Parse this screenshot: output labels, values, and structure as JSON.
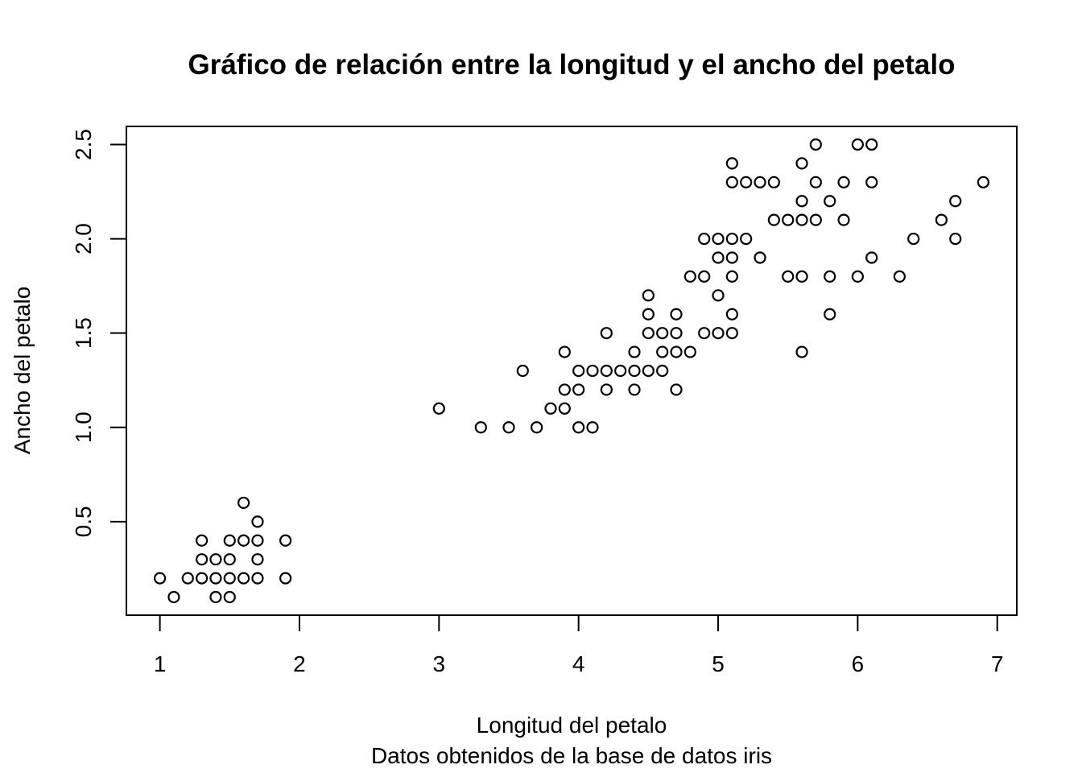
{
  "chart_data": {
    "type": "scatter",
    "title": "Gráfico de relación entre la longitud y el ancho del petalo",
    "xlabel": "Longitud del petalo",
    "sublabel": "Datos obtenidos de la base de datos iris",
    "ylabel": "Ancho del petalo",
    "xlim": [
      0.76,
      7.14
    ],
    "ylim": [
      0.004,
      2.596
    ],
    "xticks": [
      1,
      2,
      3,
      4,
      5,
      6,
      7
    ],
    "yticks": [
      0.5,
      1.0,
      1.5,
      2.0,
      2.5
    ],
    "xtick_labels": [
      "1",
      "2",
      "3",
      "4",
      "5",
      "6",
      "7"
    ],
    "ytick_labels": [
      "0.5",
      "1.0",
      "1.5",
      "2.0",
      "2.5"
    ],
    "grid": false,
    "marker": "open-circle",
    "points": [
      [
        1.0,
        0.2
      ],
      [
        1.1,
        0.1
      ],
      [
        1.2,
        0.2
      ],
      [
        1.3,
        0.2
      ],
      [
        1.3,
        0.3
      ],
      [
        1.3,
        0.4
      ],
      [
        1.4,
        0.1
      ],
      [
        1.4,
        0.2
      ],
      [
        1.4,
        0.3
      ],
      [
        1.5,
        0.1
      ],
      [
        1.5,
        0.2
      ],
      [
        1.5,
        0.3
      ],
      [
        1.5,
        0.4
      ],
      [
        1.6,
        0.2
      ],
      [
        1.6,
        0.4
      ],
      [
        1.6,
        0.6
      ],
      [
        1.7,
        0.2
      ],
      [
        1.7,
        0.3
      ],
      [
        1.7,
        0.4
      ],
      [
        1.7,
        0.5
      ],
      [
        1.9,
        0.2
      ],
      [
        1.9,
        0.4
      ],
      [
        3.0,
        1.1
      ],
      [
        3.3,
        1.0
      ],
      [
        3.5,
        1.0
      ],
      [
        3.6,
        1.3
      ],
      [
        3.7,
        1.0
      ],
      [
        3.8,
        1.1
      ],
      [
        3.9,
        1.1
      ],
      [
        3.9,
        1.2
      ],
      [
        3.9,
        1.4
      ],
      [
        4.0,
        1.0
      ],
      [
        4.0,
        1.2
      ],
      [
        4.0,
        1.3
      ],
      [
        4.1,
        1.0
      ],
      [
        4.1,
        1.3
      ],
      [
        4.2,
        1.2
      ],
      [
        4.2,
        1.3
      ],
      [
        4.2,
        1.5
      ],
      [
        4.3,
        1.3
      ],
      [
        4.4,
        1.2
      ],
      [
        4.4,
        1.3
      ],
      [
        4.4,
        1.4
      ],
      [
        4.5,
        1.3
      ],
      [
        4.5,
        1.5
      ],
      [
        4.5,
        1.6
      ],
      [
        4.5,
        1.7
      ],
      [
        4.6,
        1.3
      ],
      [
        4.6,
        1.4
      ],
      [
        4.6,
        1.5
      ],
      [
        4.7,
        1.2
      ],
      [
        4.7,
        1.4
      ],
      [
        4.7,
        1.5
      ],
      [
        4.7,
        1.6
      ],
      [
        4.8,
        1.4
      ],
      [
        4.8,
        1.8
      ],
      [
        4.9,
        1.5
      ],
      [
        4.9,
        1.8
      ],
      [
        4.9,
        2.0
      ],
      [
        5.0,
        1.5
      ],
      [
        5.0,
        1.7
      ],
      [
        5.0,
        1.9
      ],
      [
        5.0,
        2.0
      ],
      [
        5.1,
        1.5
      ],
      [
        5.1,
        1.6
      ],
      [
        5.1,
        1.8
      ],
      [
        5.1,
        1.9
      ],
      [
        5.1,
        2.0
      ],
      [
        5.1,
        2.3
      ],
      [
        5.1,
        2.4
      ],
      [
        5.2,
        2.0
      ],
      [
        5.2,
        2.3
      ],
      [
        5.3,
        1.9
      ],
      [
        5.3,
        2.3
      ],
      [
        5.4,
        2.1
      ],
      [
        5.4,
        2.3
      ],
      [
        5.5,
        1.8
      ],
      [
        5.5,
        2.1
      ],
      [
        5.6,
        1.4
      ],
      [
        5.6,
        1.8
      ],
      [
        5.6,
        2.1
      ],
      [
        5.6,
        2.2
      ],
      [
        5.6,
        2.4
      ],
      [
        5.7,
        2.1
      ],
      [
        5.7,
        2.3
      ],
      [
        5.7,
        2.5
      ],
      [
        5.8,
        1.6
      ],
      [
        5.8,
        1.8
      ],
      [
        5.8,
        2.2
      ],
      [
        5.9,
        2.1
      ],
      [
        5.9,
        2.3
      ],
      [
        6.0,
        1.8
      ],
      [
        6.0,
        2.5
      ],
      [
        6.1,
        1.9
      ],
      [
        6.1,
        2.3
      ],
      [
        6.1,
        2.5
      ],
      [
        6.3,
        1.8
      ],
      [
        6.4,
        2.0
      ],
      [
        6.6,
        2.1
      ],
      [
        6.7,
        2.0
      ],
      [
        6.7,
        2.2
      ],
      [
        6.9,
        2.3
      ]
    ]
  }
}
